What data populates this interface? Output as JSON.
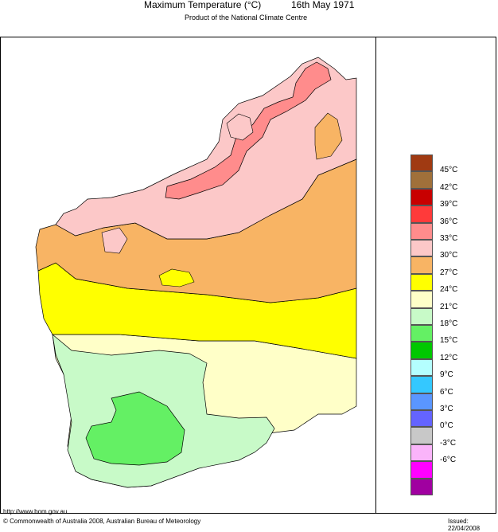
{
  "header": {
    "title": "Maximum Temperature (°C)",
    "date": "16th May 1971",
    "subtitle": "Product of the National Climate Centre"
  },
  "legend": {
    "items": [
      {
        "label": "45°C",
        "color": "#a03a12"
      },
      {
        "label": "42°C",
        "color": "#a0703a"
      },
      {
        "label": "39°C",
        "color": "#c80000"
      },
      {
        "label": "36°C",
        "color": "#ff3a3a"
      },
      {
        "label": "33°C",
        "color": "#ff8c8c"
      },
      {
        "label": "30°C",
        "color": "#fcc8c8"
      },
      {
        "label": "27°C",
        "color": "#f8b464"
      },
      {
        "label": "24°C",
        "color": "#ffff00"
      },
      {
        "label": "21°C",
        "color": "#ffffc8"
      },
      {
        "label": "18°C",
        "color": "#c8fac8"
      },
      {
        "label": "15°C",
        "color": "#64f064"
      },
      {
        "label": "12°C",
        "color": "#00c800"
      },
      {
        "label": "9°C",
        "color": "#b4ffff"
      },
      {
        "label": "6°C",
        "color": "#34c8ff"
      },
      {
        "label": "3°C",
        "color": "#5a96ff"
      },
      {
        "label": "0°C",
        "color": "#6464ff"
      },
      {
        "label": "-3°C",
        "color": "#c8c8c8"
      },
      {
        "label": "-6°C",
        "color": "#fab4fa"
      }
    ],
    "bottom_colors": [
      "#ff00ff",
      "#a000a0"
    ]
  },
  "zones": {
    "t33_color": "#ff8c8c",
    "t30_color": "#fcc8c8",
    "t27_color": "#f8b464",
    "t24_color": "#ffff00",
    "t21_color": "#ffffc8",
    "t18_color": "#c8fac8",
    "t15_color": "#64f064"
  },
  "footer": {
    "url": "http://www.bom.gov.au",
    "copyright": "© Commonwealth of Australia 2008, Australian Bureau of Meteorology",
    "issued": "Issued: 22/04/2008"
  }
}
